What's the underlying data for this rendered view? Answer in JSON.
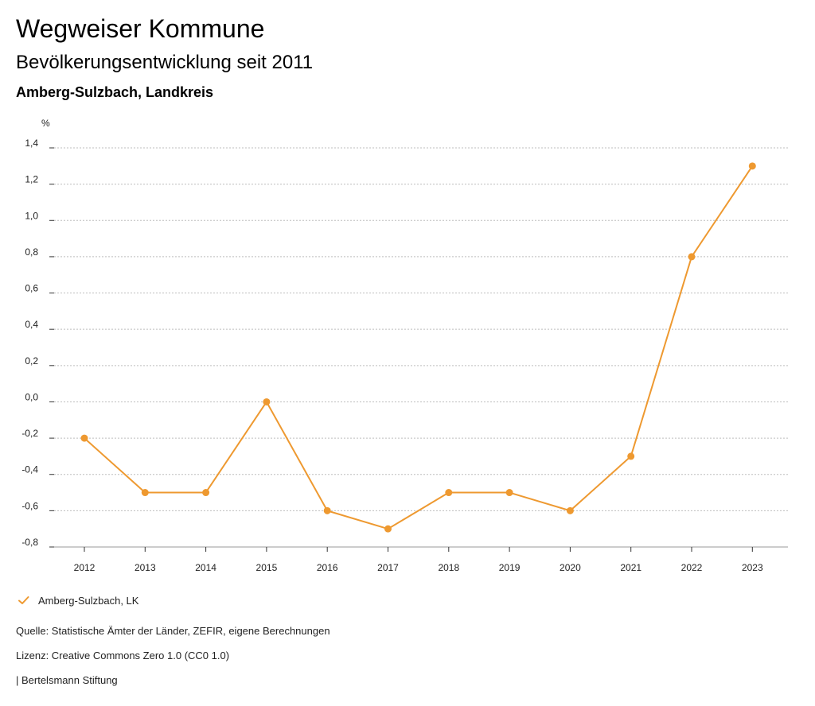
{
  "header": {
    "title": "Wegweiser Kommune",
    "subtitle": "Bevölkerungsentwicklung seit 2011",
    "region": "Amberg-Sulzbach, Landkreis"
  },
  "chart_data": {
    "type": "line",
    "ylabel": "%",
    "ylim": [
      -0.8,
      1.4
    ],
    "yticks": [
      1.4,
      1.2,
      1.0,
      0.8,
      0.6,
      0.4,
      0.2,
      0.0,
      -0.2,
      -0.4,
      -0.6,
      -0.8
    ],
    "ytick_labels": [
      "1,4",
      "1,2",
      "1,0",
      "0,8",
      "0,6",
      "0,4",
      "0,2",
      "0,0",
      "-0,2",
      "-0,4",
      "-0,6",
      "-0,8"
    ],
    "categories": [
      "2012",
      "2013",
      "2014",
      "2015",
      "2016",
      "2017",
      "2018",
      "2019",
      "2020",
      "2021",
      "2022",
      "2023"
    ],
    "series": [
      {
        "name": "Amberg-Sulzbach, LK",
        "color": "#ee9930",
        "values": [
          -0.2,
          -0.5,
          -0.5,
          0.0,
          -0.6,
          -0.7,
          -0.5,
          -0.5,
          -0.6,
          -0.3,
          0.8,
          1.3
        ]
      }
    ],
    "grid": true,
    "legend": "bottom-left"
  },
  "legend": {
    "label": "Amberg-Sulzbach, LK"
  },
  "footer": {
    "source": "Quelle: Statistische Ämter der Länder, ZEFIR, eigene Berechnungen",
    "license": "Lizenz: Creative Commons Zero 1.0 (CC0 1.0)",
    "publisher": "| Bertelsmann Stiftung"
  }
}
